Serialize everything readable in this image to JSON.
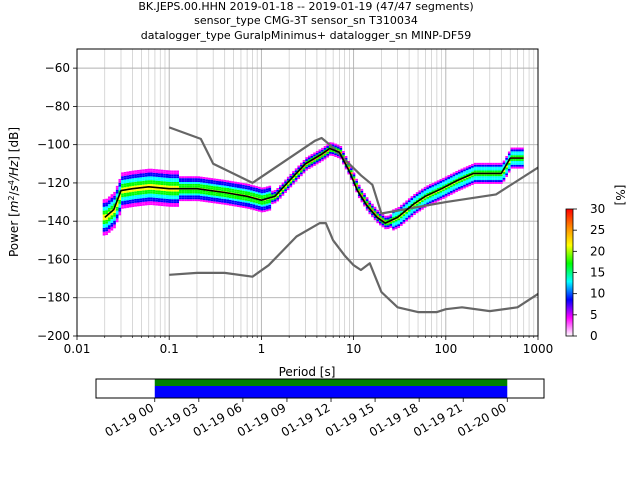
{
  "title_lines": [
    "BK.JEPS.00.HHN   2019-01-18 -- 2019-01-19  (47/47 segments)",
    "sensor_type CMG-3T sensor_sn T310034",
    "datalogger_type GuralpMinimus+ datalogger_sn MINP-DF59"
  ],
  "chart_data": [
    {
      "type": "heatmap",
      "xlabel": "Period [s]",
      "ylabel_parts": [
        "Power [",
        "m",
        "2",
        "/",
        "s",
        "4",
        "/Hz",
        "] [dB]"
      ],
      "x_scale": "log",
      "xlim": [
        0.01,
        1000
      ],
      "ylim": [
        -200,
        -50
      ],
      "x_ticks": [
        {
          "v": 0.01,
          "label": "0.01"
        },
        {
          "v": 0.1,
          "label": "0.1"
        },
        {
          "v": 1,
          "label": "1"
        },
        {
          "v": 10,
          "label": "10"
        },
        {
          "v": 100,
          "label": "100"
        },
        {
          "v": 1000,
          "label": "1000"
        }
      ],
      "y_ticks": [
        {
          "v": -60,
          "label": "−60"
        },
        {
          "v": -80,
          "label": "−80"
        },
        {
          "v": -100,
          "label": "−100"
        },
        {
          "v": -120,
          "label": "−120"
        },
        {
          "v": -140,
          "label": "−140"
        },
        {
          "v": -160,
          "label": "−160"
        },
        {
          "v": -180,
          "label": "−180"
        },
        {
          "v": -200,
          "label": "−200"
        }
      ],
      "grid": true,
      "series": [
        {
          "name": "",
          "color": "#666666",
          "x": [
            0.1,
            0.22,
            0.3,
            0.8,
            3.8,
            4.5,
            5.5,
            12,
            16,
            20,
            100,
            350,
            1000
          ],
          "y": [
            -91,
            -97,
            -110,
            -120,
            -98,
            -96.5,
            -100,
            -116,
            -121,
            -136,
            -130,
            -126,
            -112
          ]
        },
        {
          "name": "",
          "color": "#666666",
          "x": [
            0.1,
            0.2,
            0.4,
            0.8,
            1.2,
            2.4,
            4.3,
            5.0,
            6.0,
            8.0,
            10,
            12,
            15,
            20,
            30,
            50,
            80,
            100,
            150,
            300,
            600,
            1000
          ],
          "y": [
            -168,
            -167,
            -167,
            -169,
            -163,
            -148,
            -141,
            -141,
            -150,
            -158,
            -163,
            -165.5,
            -162,
            -177,
            -185,
            -187.5,
            -187.5,
            -186,
            -185,
            -187,
            -185,
            -178
          ]
        },
        {
          "name": "",
          "color": "#000000",
          "x": [
            0.02,
            0.025,
            0.03,
            0.04,
            0.06,
            0.1,
            0.2,
            0.4,
            0.7,
            1.0,
            1.4,
            2.0,
            3.0,
            4.5,
            5.5,
            7.0,
            9.0,
            11,
            14,
            18,
            22,
            30,
            45,
            60,
            90,
            130,
            200,
            400,
            500,
            700
          ],
          "y": [
            -138,
            -134,
            -124,
            -123,
            -122,
            -123,
            -123,
            -125,
            -127,
            -129,
            -127,
            -119,
            -110,
            -105,
            -102,
            -104,
            -114,
            -124,
            -132,
            -138,
            -141,
            -138,
            -131,
            -127,
            -123,
            -119,
            -115,
            -115,
            -107,
            -107
          ]
        }
      ],
      "colorbar": {
        "label": "[%]",
        "range": [
          0,
          30
        ],
        "ticks": [
          {
            "v": 0,
            "label": "0"
          },
          {
            "v": 5,
            "label": "5"
          },
          {
            "v": 10,
            "label": "10"
          },
          {
            "v": 15,
            "label": "15"
          },
          {
            "v": 20,
            "label": "20"
          },
          {
            "v": 25,
            "label": "25"
          },
          {
            "v": 30,
            "label": "30"
          }
        ],
        "colors": [
          "#ffffff",
          "#ff00ff",
          "#0000ff",
          "#00ffff",
          "#00ff00",
          "#ffff00",
          "#ff8800",
          "#ff0000"
        ]
      }
    },
    {
      "type": "timeline",
      "xlim": [
        "2019-01-18 20:00",
        "2019-01-20 02:30"
      ],
      "coverage": [
        {
          "start": "2019-01-19 00:00",
          "end": "2019-01-20 00:00",
          "color": "#008000"
        },
        {
          "start": "2019-01-19 00:00",
          "end": "2019-01-20 00:00",
          "color": "#0000ff"
        }
      ],
      "x_ticks": [
        {
          "v": "2019-01-19 00:00",
          "label": "01-19 00"
        },
        {
          "v": "2019-01-19 03:00",
          "label": "01-19 03"
        },
        {
          "v": "2019-01-19 06:00",
          "label": "01-19 06"
        },
        {
          "v": "2019-01-19 09:00",
          "label": "01-19 09"
        },
        {
          "v": "2019-01-19 12:00",
          "label": "01-19 12"
        },
        {
          "v": "2019-01-19 15:00",
          "label": "01-19 15"
        },
        {
          "v": "2019-01-19 18:00",
          "label": "01-19 18"
        },
        {
          "v": "2019-01-19 21:00",
          "label": "01-19 21"
        },
        {
          "v": "2019-01-20 00:00",
          "label": "01-20 00"
        }
      ]
    }
  ]
}
